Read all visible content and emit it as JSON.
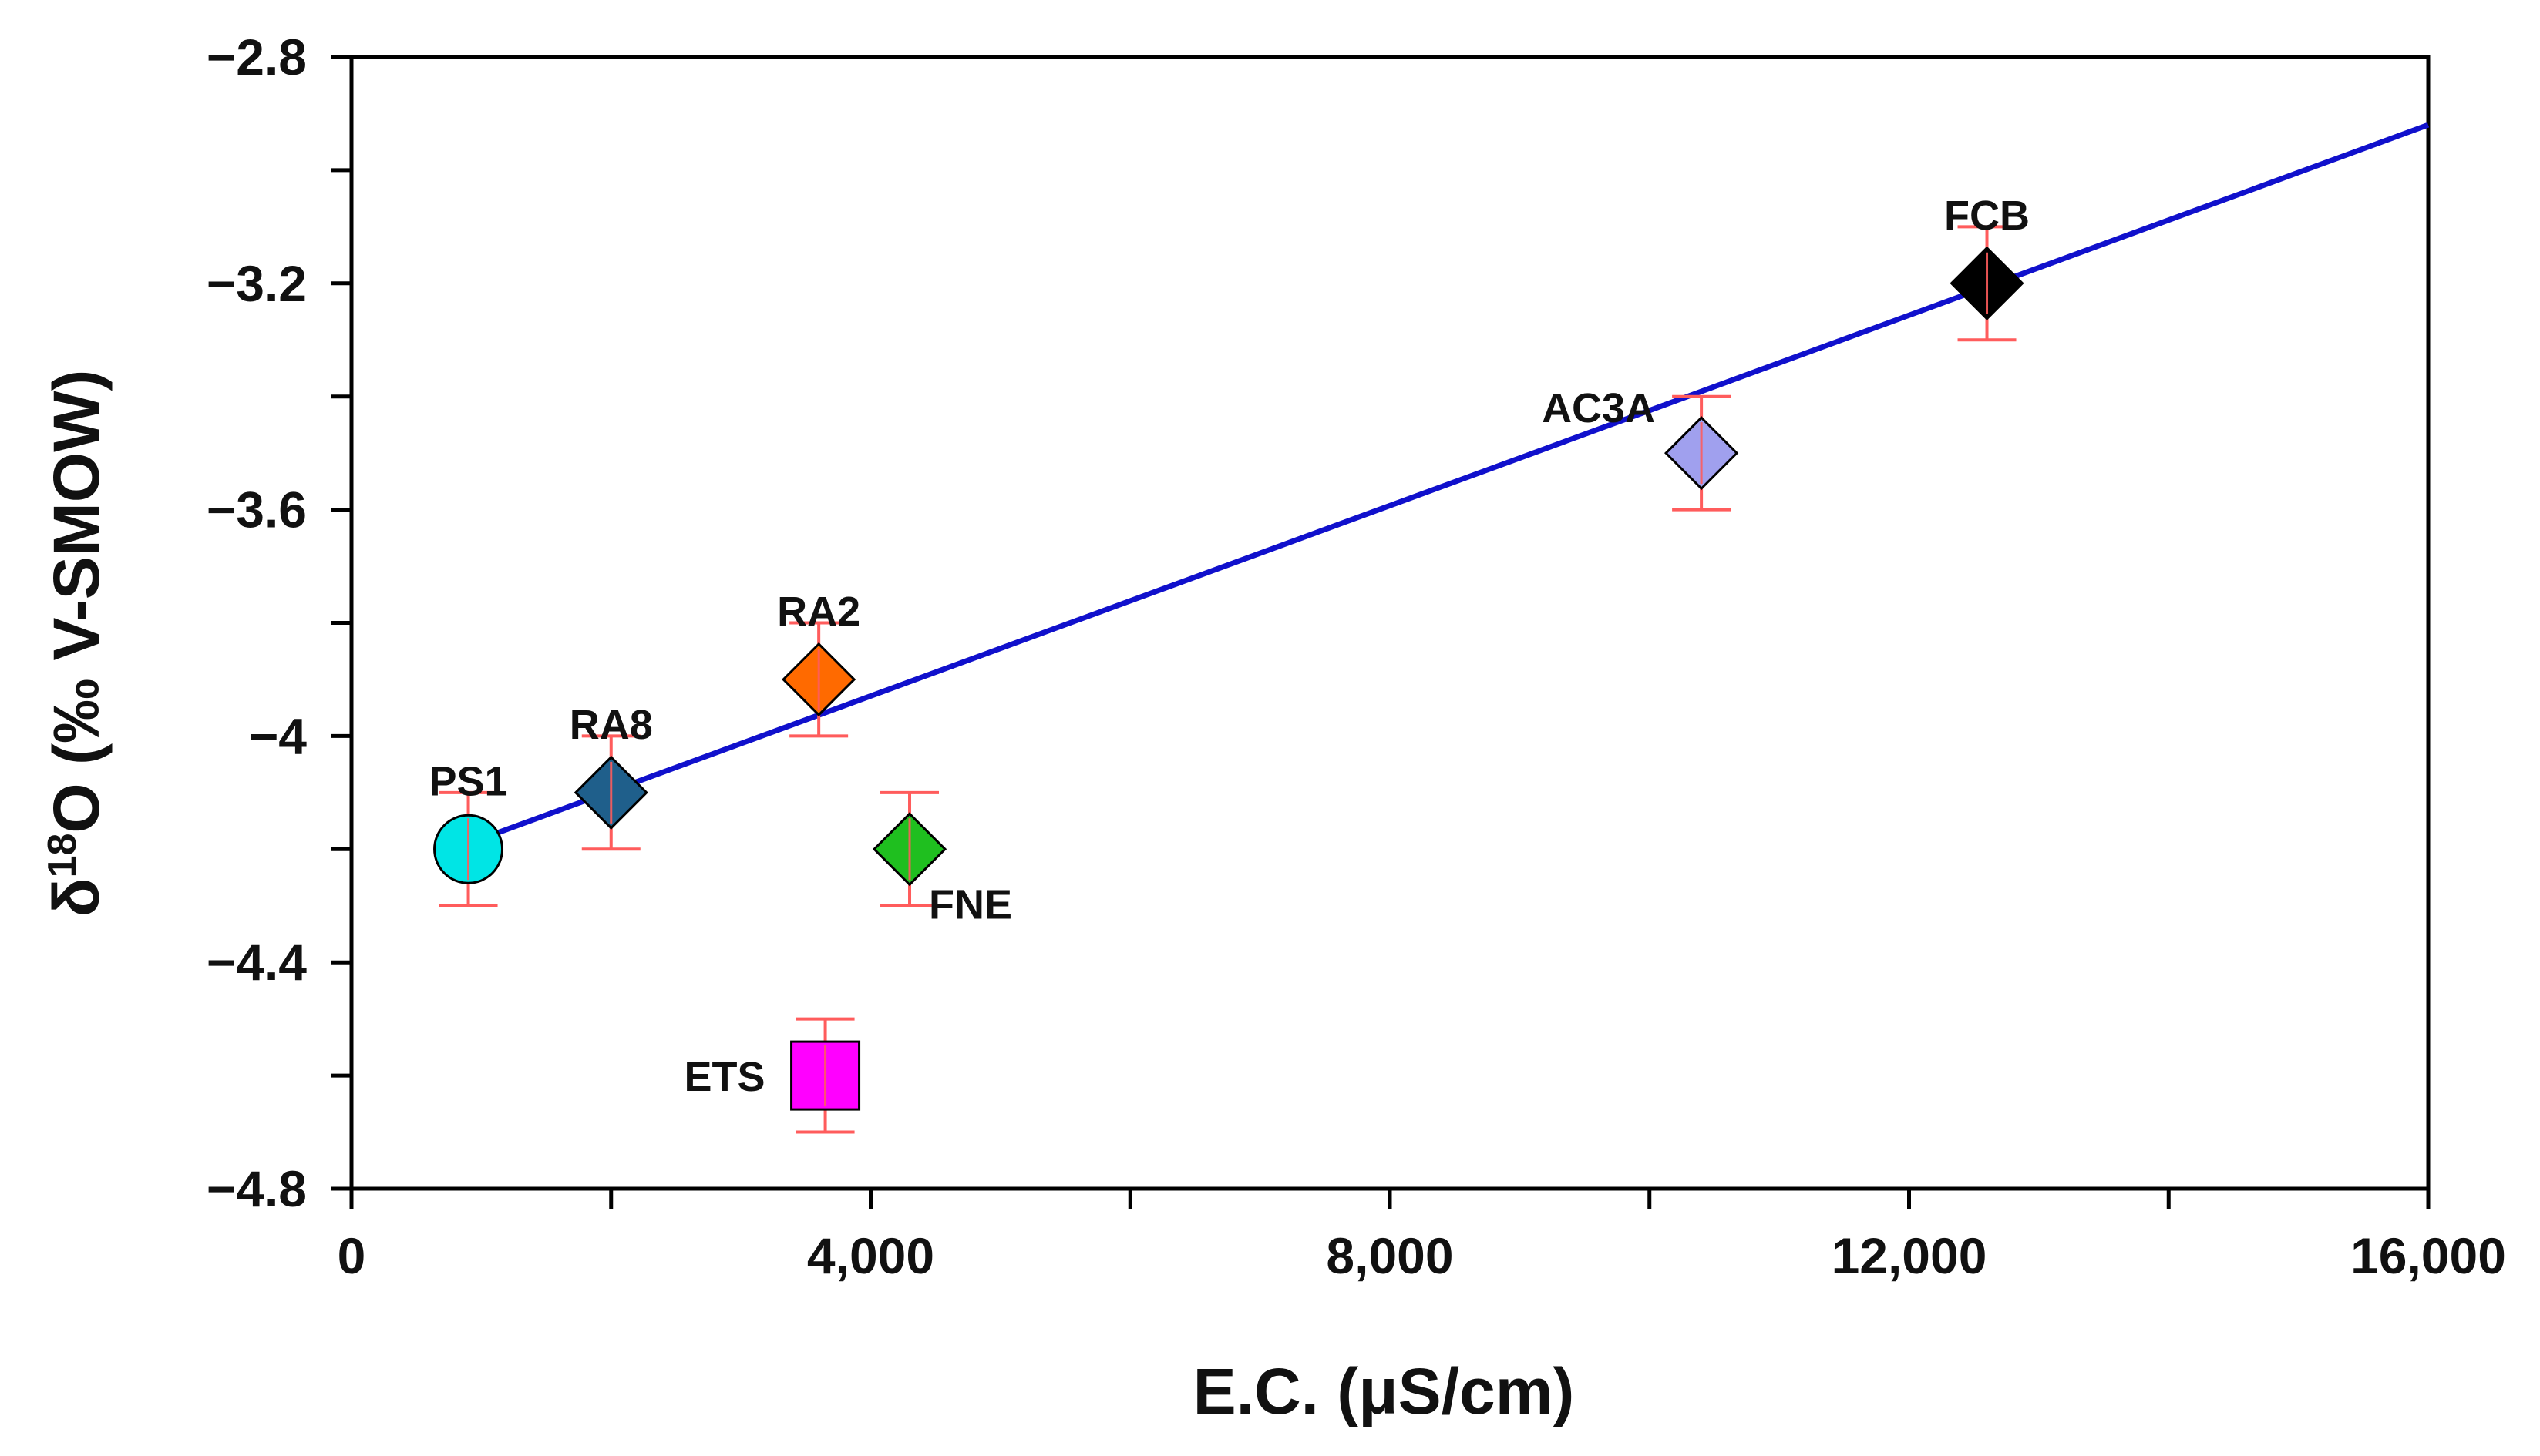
{
  "chart_data": {
    "type": "scatter",
    "xlabel": "E.C. (μS/cm)",
    "ylabel_prefix": "δ",
    "ylabel_sup": "18",
    "ylabel_rest": "O (‰ V-SMOW)",
    "xlim": [
      0,
      16000
    ],
    "ylim": [
      -4.8,
      -2.8
    ],
    "x_ticks": [
      {
        "value": 0,
        "label": "0"
      },
      {
        "value": 4000,
        "label": "4,000"
      },
      {
        "value": 8000,
        "label": "8,000"
      },
      {
        "value": 12000,
        "label": "12,000"
      },
      {
        "value": 16000,
        "label": "16,000"
      }
    ],
    "x_minor_ticks": [
      2000,
      6000,
      10000,
      14000
    ],
    "y_ticks": [
      {
        "value": -2.8,
        "label": "−2.8"
      },
      {
        "value": -3.2,
        "label": "−3.2"
      },
      {
        "value": -3.6,
        "label": "−3.6"
      },
      {
        "value": -4.0,
        "label": "−4"
      },
      {
        "value": -4.4,
        "label": "−4.4"
      },
      {
        "value": -4.8,
        "label": "−4.8"
      }
    ],
    "y_minor_ticks": [
      -3.0,
      -3.4,
      -3.8,
      -4.2,
      -4.6
    ],
    "points": [
      {
        "label": "PS1",
        "x": 900,
        "y": -4.2,
        "err": 0.1,
        "marker": "circle",
        "color": "#00e5e5",
        "label_pos": "above"
      },
      {
        "label": "RA8",
        "x": 2000,
        "y": -4.1,
        "err": 0.1,
        "marker": "diamond",
        "color": "#1f5f8b",
        "label_pos": "above"
      },
      {
        "label": "RA2",
        "x": 3600,
        "y": -3.9,
        "err": 0.1,
        "marker": "diamond",
        "color": "#ff6a00",
        "label_pos": "above"
      },
      {
        "label": "FNE",
        "x": 4300,
        "y": -4.2,
        "err": 0.1,
        "marker": "diamond",
        "color": "#1fbf1f",
        "label_pos": "below-right"
      },
      {
        "label": "ETS",
        "x": 3650,
        "y": -4.6,
        "err": 0.1,
        "marker": "square",
        "color": "#ff00ff",
        "label_pos": "left"
      },
      {
        "label": "AC3A",
        "x": 10400,
        "y": -3.5,
        "err": 0.1,
        "marker": "diamond",
        "color": "#a0a0ee",
        "label_pos": "above-left"
      },
      {
        "label": "FCB",
        "x": 12600,
        "y": -3.2,
        "err": 0.1,
        "marker": "diamond",
        "color": "#000000",
        "label_pos": "above"
      }
    ],
    "fit_line": {
      "x_start": 900,
      "y_start": -4.19,
      "x_end": 16000,
      "y_end": -2.92,
      "color": "#1010cc"
    },
    "errorbar_color": "#ff5c5c"
  }
}
